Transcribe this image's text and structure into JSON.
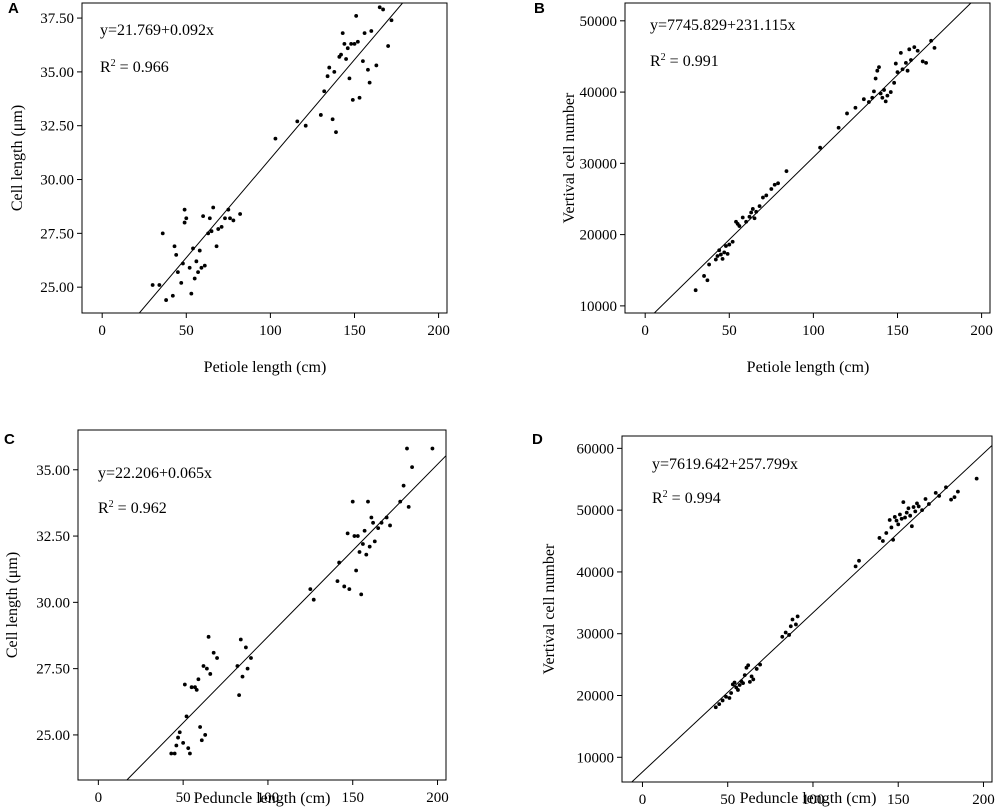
{
  "chart_data": [
    {
      "type": "scatter",
      "panel": "A",
      "xlabel": "Petiole length (cm)",
      "ylabel": "Cell length (μm)",
      "xlim": [
        -12,
        205
      ],
      "ylim": [
        23.8,
        38.2
      ],
      "xticks": [
        0,
        50,
        100,
        150,
        200
      ],
      "xtick_labels": [
        "0",
        "50",
        "100",
        "150",
        "200"
      ],
      "yticks": [
        25.0,
        27.5,
        30.0,
        32.5,
        35.0,
        37.5
      ],
      "ytick_labels": [
        "25.00",
        "27.50",
        "30.00",
        "32.50",
        "35.00",
        "37.50"
      ],
      "equation": "y=21.769+0.092x",
      "r2_prefix": "R",
      "r2_sup": "2",
      "r2_suffix": " = 0.966",
      "fit": {
        "intercept": 21.769,
        "slope": 0.092
      },
      "points": [
        [
          30,
          25.1
        ],
        [
          34,
          25.1
        ],
        [
          36,
          27.5
        ],
        [
          38,
          24.4
        ],
        [
          42,
          24.6
        ],
        [
          43,
          26.9
        ],
        [
          44,
          26.5
        ],
        [
          45,
          25.7
        ],
        [
          47,
          25.2
        ],
        [
          48,
          26.1
        ],
        [
          49,
          28.0
        ],
        [
          49,
          28.6
        ],
        [
          50,
          28.2
        ],
        [
          52,
          25.9
        ],
        [
          53,
          24.7
        ],
        [
          54,
          26.8
        ],
        [
          55,
          25.4
        ],
        [
          56,
          26.2
        ],
        [
          57,
          25.7
        ],
        [
          58,
          26.7
        ],
        [
          59,
          25.9
        ],
        [
          60,
          28.3
        ],
        [
          61,
          26.0
        ],
        [
          63,
          27.5
        ],
        [
          64,
          28.2
        ],
        [
          65,
          27.6
        ],
        [
          66,
          28.7
        ],
        [
          68,
          26.9
        ],
        [
          69,
          27.7
        ],
        [
          71,
          27.8
        ],
        [
          73,
          28.2
        ],
        [
          75,
          28.6
        ],
        [
          76,
          28.2
        ],
        [
          78,
          28.1
        ],
        [
          82,
          28.4
        ],
        [
          103,
          31.9
        ],
        [
          116,
          32.7
        ],
        [
          121,
          32.5
        ],
        [
          130,
          33.0
        ],
        [
          132,
          34.1
        ],
        [
          134,
          34.8
        ],
        [
          135,
          35.2
        ],
        [
          137,
          32.8
        ],
        [
          138,
          35.0
        ],
        [
          139,
          32.2
        ],
        [
          141,
          35.7
        ],
        [
          142,
          35.8
        ],
        [
          143,
          36.8
        ],
        [
          144,
          36.3
        ],
        [
          145,
          35.6
        ],
        [
          146,
          36.1
        ],
        [
          147,
          34.7
        ],
        [
          148,
          36.3
        ],
        [
          149,
          33.7
        ],
        [
          150,
          36.3
        ],
        [
          151,
          37.6
        ],
        [
          152,
          36.4
        ],
        [
          153,
          33.8
        ],
        [
          155,
          35.5
        ],
        [
          156,
          36.8
        ],
        [
          158,
          35.1
        ],
        [
          159,
          34.5
        ],
        [
          160,
          36.9
        ],
        [
          163,
          35.3
        ],
        [
          165,
          38.0
        ],
        [
          167,
          37.9
        ],
        [
          170,
          36.2
        ],
        [
          172,
          37.4
        ]
      ]
    },
    {
      "type": "scatter",
      "panel": "B",
      "xlabel": "Petiole length (cm)",
      "ylabel": "Vertival cell number",
      "xlim": [
        -12,
        205
      ],
      "ylim": [
        9000,
        52500
      ],
      "xticks": [
        0,
        50,
        100,
        150,
        200
      ],
      "xtick_labels": [
        "0",
        "50",
        "100",
        "150",
        "200"
      ],
      "yticks": [
        10000,
        20000,
        30000,
        40000,
        50000
      ],
      "ytick_labels": [
        "10000",
        "20000",
        "30000",
        "40000",
        "50000"
      ],
      "equation": "y=7745.829+231.115x",
      "r2_prefix": "R",
      "r2_sup": "2",
      "r2_suffix": " = 0.991",
      "fit": {
        "intercept": 7745.829,
        "slope": 231.115
      },
      "points": [
        [
          30,
          12200
        ],
        [
          35,
          14200
        ],
        [
          37,
          13600
        ],
        [
          38,
          15800
        ],
        [
          42,
          16500
        ],
        [
          43,
          17000
        ],
        [
          44,
          17800
        ],
        [
          45,
          17200
        ],
        [
          46,
          16600
        ],
        [
          47,
          17500
        ],
        [
          48,
          18400
        ],
        [
          49,
          17300
        ],
        [
          50,
          18600
        ],
        [
          52,
          19000
        ],
        [
          54,
          21800
        ],
        [
          55,
          21500
        ],
        [
          56,
          21200
        ],
        [
          58,
          22400
        ],
        [
          60,
          21800
        ],
        [
          62,
          22500
        ],
        [
          63,
          23100
        ],
        [
          64,
          23600
        ],
        [
          65,
          22300
        ],
        [
          66,
          23200
        ],
        [
          68,
          24000
        ],
        [
          70,
          25200
        ],
        [
          72,
          25500
        ],
        [
          75,
          26400
        ],
        [
          77,
          27000
        ],
        [
          79,
          27200
        ],
        [
          84,
          28900
        ],
        [
          104,
          32200
        ],
        [
          115,
          35000
        ],
        [
          120,
          37000
        ],
        [
          125,
          37800
        ],
        [
          130,
          39000
        ],
        [
          133,
          38600
        ],
        [
          135,
          39200
        ],
        [
          136,
          40100
        ],
        [
          137,
          41900
        ],
        [
          138,
          43000
        ],
        [
          139,
          43500
        ],
        [
          140,
          39800
        ],
        [
          141,
          39200
        ],
        [
          142,
          40300
        ],
        [
          143,
          38700
        ],
        [
          144,
          39500
        ],
        [
          146,
          40000
        ],
        [
          148,
          41300
        ],
        [
          149,
          44000
        ],
        [
          150,
          42800
        ],
        [
          152,
          45500
        ],
        [
          153,
          43200
        ],
        [
          155,
          44100
        ],
        [
          156,
          43000
        ],
        [
          157,
          46000
        ],
        [
          158,
          44500
        ],
        [
          160,
          46300
        ],
        [
          162,
          45800
        ],
        [
          165,
          44300
        ],
        [
          167,
          44100
        ],
        [
          170,
          47200
        ],
        [
          172,
          46200
        ]
      ]
    },
    {
      "type": "scatter",
      "panel": "C",
      "xlabel": "Peduncle length (cm)",
      "ylabel": "Cell length (μm)",
      "xlim": [
        -12,
        205
      ],
      "ylim": [
        23.3,
        36.5
      ],
      "xticks": [
        0,
        50,
        100,
        150,
        200
      ],
      "xtick_labels": [
        "0",
        "50",
        "100",
        "150",
        "200"
      ],
      "yticks": [
        25.0,
        27.5,
        30.0,
        32.5,
        35.0
      ],
      "ytick_labels": [
        "25.00",
        "27.50",
        "30.00",
        "32.50",
        "35.00"
      ],
      "equation": "y=22.206+0.065x",
      "r2_prefix": "R",
      "r2_sup": "2",
      "r2_suffix": " = 0.962",
      "fit": {
        "intercept": 22.206,
        "slope": 0.065
      },
      "points": [
        [
          43,
          24.3
        ],
        [
          45,
          24.3
        ],
        [
          46,
          24.6
        ],
        [
          47,
          24.9
        ],
        [
          48,
          25.1
        ],
        [
          50,
          24.7
        ],
        [
          51,
          26.9
        ],
        [
          52,
          25.7
        ],
        [
          53,
          24.5
        ],
        [
          54,
          24.3
        ],
        [
          55,
          26.8
        ],
        [
          57,
          26.8
        ],
        [
          58,
          26.7
        ],
        [
          59,
          27.1
        ],
        [
          60,
          25.3
        ],
        [
          61,
          24.8
        ],
        [
          62,
          27.6
        ],
        [
          63,
          25.0
        ],
        [
          64,
          27.5
        ],
        [
          65,
          28.7
        ],
        [
          66,
          27.3
        ],
        [
          68,
          28.1
        ],
        [
          70,
          27.9
        ],
        [
          82,
          27.6
        ],
        [
          83,
          26.5
        ],
        [
          84,
          28.6
        ],
        [
          85,
          27.2
        ],
        [
          87,
          28.3
        ],
        [
          88,
          27.5
        ],
        [
          90,
          27.9
        ],
        [
          125,
          30.5
        ],
        [
          127,
          30.1
        ],
        [
          141,
          30.8
        ],
        [
          142,
          31.5
        ],
        [
          145,
          30.6
        ],
        [
          147,
          32.6
        ],
        [
          148,
          30.5
        ],
        [
          150,
          33.8
        ],
        [
          151,
          32.5
        ],
        [
          152,
          31.2
        ],
        [
          153,
          32.5
        ],
        [
          154,
          31.9
        ],
        [
          155,
          30.3
        ],
        [
          156,
          32.2
        ],
        [
          157,
          32.7
        ],
        [
          158,
          31.8
        ],
        [
          159,
          33.8
        ],
        [
          160,
          32.1
        ],
        [
          161,
          33.2
        ],
        [
          162,
          33.0
        ],
        [
          163,
          32.3
        ],
        [
          165,
          32.8
        ],
        [
          167,
          33.0
        ],
        [
          170,
          33.2
        ],
        [
          172,
          32.9
        ],
        [
          178,
          33.8
        ],
        [
          180,
          34.4
        ],
        [
          182,
          35.8
        ],
        [
          183,
          33.6
        ],
        [
          185,
          35.1
        ],
        [
          197,
          35.8
        ]
      ]
    },
    {
      "type": "scatter",
      "panel": "D",
      "xlabel": "Peduncle length (cm)",
      "ylabel": "Vertival cell number",
      "xlim": [
        -12,
        205
      ],
      "ylim": [
        6000,
        62000
      ],
      "xticks": [
        0,
        50,
        100,
        150,
        200
      ],
      "xtick_labels": [
        "0",
        "50",
        "100",
        "150",
        "200"
      ],
      "yticks": [
        10000,
        20000,
        30000,
        40000,
        50000,
        60000
      ],
      "ytick_labels": [
        "10000",
        "20000",
        "30000",
        "40000",
        "50000",
        "60000"
      ],
      "equation": "y=7619.642+257.799x",
      "r2_prefix": "R",
      "r2_sup": "2",
      "r2_suffix": " = 0.994",
      "fit": {
        "intercept": 7619.642,
        "slope": 257.799
      },
      "points": [
        [
          43,
          18100
        ],
        [
          45,
          18600
        ],
        [
          47,
          19200
        ],
        [
          49,
          19800
        ],
        [
          51,
          19600
        ],
        [
          52,
          20400
        ],
        [
          53,
          21800
        ],
        [
          54,
          22100
        ],
        [
          55,
          21300
        ],
        [
          56,
          20900
        ],
        [
          57,
          21700
        ],
        [
          58,
          22300
        ],
        [
          59,
          22000
        ],
        [
          60,
          23300
        ],
        [
          61,
          24500
        ],
        [
          62,
          24900
        ],
        [
          63,
          22200
        ],
        [
          64,
          23100
        ],
        [
          65,
          22600
        ],
        [
          67,
          24300
        ],
        [
          69,
          25000
        ],
        [
          82,
          29500
        ],
        [
          84,
          30200
        ],
        [
          86,
          29800
        ],
        [
          87,
          31200
        ],
        [
          88,
          32300
        ],
        [
          90,
          31500
        ],
        [
          91,
          32800
        ],
        [
          125,
          40900
        ],
        [
          127,
          41800
        ],
        [
          139,
          45500
        ],
        [
          141,
          45000
        ],
        [
          143,
          46300
        ],
        [
          145,
          48400
        ],
        [
          146,
          47200
        ],
        [
          147,
          45200
        ],
        [
          148,
          48900
        ],
        [
          149,
          48300
        ],
        [
          150,
          47700
        ],
        [
          151,
          49300
        ],
        [
          152,
          48600
        ],
        [
          153,
          51300
        ],
        [
          154,
          48800
        ],
        [
          155,
          49600
        ],
        [
          156,
          50300
        ],
        [
          157,
          49100
        ],
        [
          158,
          47400
        ],
        [
          159,
          50500
        ],
        [
          160,
          49800
        ],
        [
          161,
          51100
        ],
        [
          162,
          50600
        ],
        [
          164,
          50000
        ],
        [
          166,
          51800
        ],
        [
          168,
          51000
        ],
        [
          172,
          52800
        ],
        [
          174,
          52300
        ],
        [
          178,
          53700
        ],
        [
          181,
          51700
        ],
        [
          183,
          52100
        ],
        [
          185,
          53000
        ],
        [
          196,
          55100
        ]
      ]
    }
  ]
}
